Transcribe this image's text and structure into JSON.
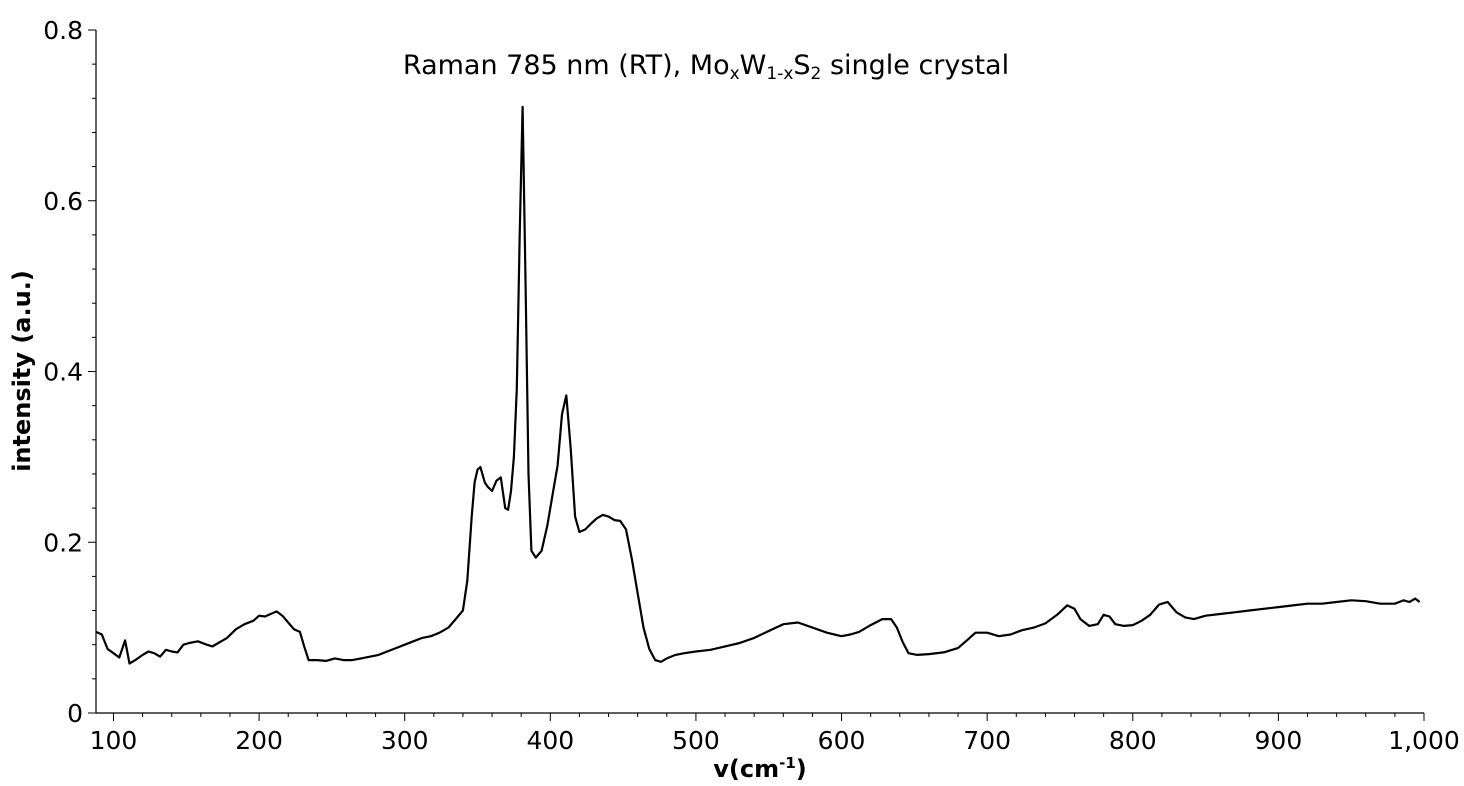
{
  "chart_data": {
    "type": "line",
    "title": {
      "prefix": "Raman 785 nm (RT), Mo",
      "sub1": "x",
      "mid1": "W",
      "sub2": "1-x",
      "mid2": "S",
      "sub3": "2",
      "suffix": " single crystal"
    },
    "xlabel": {
      "main": "v(cm",
      "sup": "-1",
      "end": ")"
    },
    "ylabel": "intensity (a.u.)",
    "xlim": [
      88,
      1000
    ],
    "ylim": [
      0,
      0.8
    ],
    "x_ticks": [
      {
        "value": 100,
        "label": "100"
      },
      {
        "value": 200,
        "label": "200"
      },
      {
        "value": 300,
        "label": "300"
      },
      {
        "value": 400,
        "label": "400"
      },
      {
        "value": 500,
        "label": "500"
      },
      {
        "value": 600,
        "label": "600"
      },
      {
        "value": 700,
        "label": "700"
      },
      {
        "value": 800,
        "label": "800"
      },
      {
        "value": 900,
        "label": "900"
      },
      {
        "value": 1000,
        "label": "1,000"
      }
    ],
    "y_ticks": [
      {
        "value": 0,
        "label": "0"
      },
      {
        "value": 0.2,
        "label": "0.2"
      },
      {
        "value": 0.4,
        "label": "0.4"
      },
      {
        "value": 0.6,
        "label": "0.6"
      },
      {
        "value": 0.8,
        "label": "0.8"
      }
    ],
    "grid": false,
    "line_color": "#000000",
    "series": [
      {
        "x": [
          88,
          92,
          96,
          100,
          104,
          108,
          111,
          115,
          120,
          124,
          128,
          132,
          136,
          140,
          144,
          148,
          152,
          158,
          164,
          168,
          172,
          178,
          184,
          190,
          196,
          200,
          204,
          208,
          212,
          216,
          220,
          224,
          228,
          231,
          234,
          240,
          246,
          252,
          258,
          264,
          270,
          276,
          282,
          288,
          294,
          300,
          306,
          312,
          318,
          324,
          330,
          335,
          340,
          343,
          346,
          348,
          350,
          352,
          355,
          357,
          360,
          363,
          366,
          369,
          371,
          373,
          375,
          377,
          379,
          381,
          383,
          385,
          387,
          390,
          394,
          398,
          402,
          405,
          408,
          411,
          414,
          417,
          420,
          424,
          428,
          432,
          436,
          440,
          444,
          448,
          452,
          456,
          460,
          464,
          468,
          472,
          476,
          480,
          486,
          492,
          500,
          510,
          520,
          530,
          540,
          550,
          560,
          570,
          580,
          590,
          600,
          606,
          612,
          620,
          628,
          634,
          638,
          642,
          646,
          652,
          660,
          670,
          680,
          686,
          692,
          700,
          708,
          716,
          724,
          732,
          740,
          748,
          755,
          760,
          764,
          770,
          776,
          780,
          784,
          788,
          794,
          800,
          806,
          812,
          818,
          824,
          830,
          836,
          842,
          850,
          860,
          870,
          880,
          890,
          900,
          910,
          920,
          930,
          940,
          950,
          960,
          970,
          980,
          986,
          990,
          994,
          997
        ],
        "y": [
          0.095,
          0.092,
          0.075,
          0.07,
          0.065,
          0.085,
          0.058,
          0.062,
          0.068,
          0.072,
          0.07,
          0.066,
          0.074,
          0.072,
          0.071,
          0.08,
          0.082,
          0.084,
          0.08,
          0.078,
          0.082,
          0.088,
          0.098,
          0.104,
          0.108,
          0.114,
          0.113,
          0.116,
          0.119,
          0.114,
          0.106,
          0.098,
          0.095,
          0.078,
          0.062,
          0.062,
          0.061,
          0.064,
          0.062,
          0.062,
          0.064,
          0.066,
          0.068,
          0.072,
          0.076,
          0.08,
          0.084,
          0.088,
          0.09,
          0.094,
          0.1,
          0.11,
          0.12,
          0.155,
          0.23,
          0.27,
          0.285,
          0.288,
          0.27,
          0.265,
          0.26,
          0.272,
          0.276,
          0.24,
          0.238,
          0.26,
          0.3,
          0.38,
          0.56,
          0.71,
          0.5,
          0.28,
          0.19,
          0.182,
          0.19,
          0.22,
          0.26,
          0.29,
          0.35,
          0.372,
          0.31,
          0.23,
          0.212,
          0.215,
          0.222,
          0.228,
          0.232,
          0.23,
          0.226,
          0.225,
          0.215,
          0.18,
          0.14,
          0.1,
          0.075,
          0.062,
          0.06,
          0.064,
          0.068,
          0.07,
          0.072,
          0.074,
          0.078,
          0.082,
          0.088,
          0.096,
          0.104,
          0.106,
          0.1,
          0.094,
          0.09,
          0.092,
          0.095,
          0.103,
          0.11,
          0.11,
          0.1,
          0.083,
          0.07,
          0.068,
          0.069,
          0.071,
          0.076,
          0.085,
          0.094,
          0.094,
          0.09,
          0.092,
          0.097,
          0.1,
          0.105,
          0.115,
          0.126,
          0.122,
          0.11,
          0.102,
          0.104,
          0.115,
          0.113,
          0.104,
          0.102,
          0.103,
          0.108,
          0.115,
          0.127,
          0.13,
          0.118,
          0.112,
          0.11,
          0.114,
          0.116,
          0.118,
          0.12,
          0.122,
          0.124,
          0.126,
          0.128,
          0.128,
          0.13,
          0.132,
          0.131,
          0.128,
          0.128,
          0.132,
          0.13,
          0.134,
          0.13
        ]
      }
    ]
  }
}
